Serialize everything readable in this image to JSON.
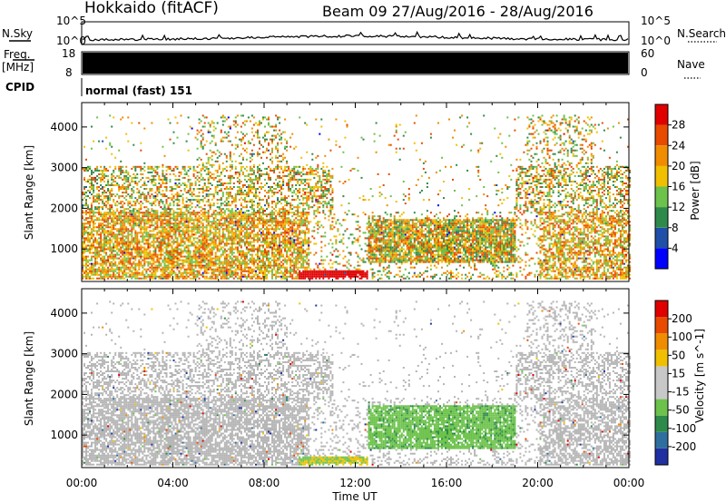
{
  "header": {
    "station": "Hokkaido (fitACF)",
    "beam_and_dates": "Beam 09 27/Aug/2016 - 28/Aug/2016"
  },
  "strip": {
    "nsky_label": "N.Sky",
    "nsky_top_tick": "10^5",
    "nsky_bottom_tick": "10^0",
    "nsearch_label": "N.Search",
    "nsearch_top_tick": "10^5",
    "nsearch_bottom_tick": "10^0",
    "freq_label_1": "Freq.",
    "freq_label_2": "[MHz]",
    "freq_ticks": [
      "18",
      "8"
    ],
    "nave_label": "Nave",
    "nave_ticks": [
      "60",
      "0"
    ],
    "cpid_label": "CPID",
    "cpid_value": "normal (fast) 151"
  },
  "colors": {
    "power_scale": [
      "#0000ff",
      "#1f4fa8",
      "#2e8a4a",
      "#6cc24a",
      "#f0c000",
      "#f08c00",
      "#e84a00",
      "#e00000"
    ],
    "velocity_scale": [
      "#2030a0",
      "#2e6fa0",
      "#2e8a4a",
      "#6cc24a",
      "#c8c8c8",
      "#c8c8c8",
      "#f0c000",
      "#f08c00",
      "#e84a00",
      "#e00000"
    ],
    "ground_scatter": "#b4b4b4"
  },
  "chart_data": [
    {
      "type": "heatmap",
      "name": "Power",
      "xlabel": "Time UT",
      "ylabel": "Slant Range [km]",
      "x_ticks": [
        "00:00",
        "04:00",
        "08:00",
        "12:00",
        "16:00",
        "20:00",
        "00:00"
      ],
      "xlim_hours": [
        0,
        24
      ],
      "y_ticks": [
        1000,
        2000,
        3000,
        4000
      ],
      "ylim": [
        200,
        4600
      ],
      "colorbar_label": "Power [dB]",
      "colorbar_ticks": [
        4,
        8,
        12,
        16,
        20,
        24,
        28
      ],
      "colorbar_range": [
        0,
        32
      ]
    },
    {
      "type": "heatmap",
      "name": "Velocity",
      "xlabel": "Time UT",
      "ylabel": "Slant Range [km]",
      "x_ticks": [
        "00:00",
        "04:00",
        "08:00",
        "12:00",
        "16:00",
        "20:00",
        "00:00"
      ],
      "xlim_hours": [
        0,
        24
      ],
      "y_ticks": [
        1000,
        2000,
        3000,
        4000
      ],
      "ylim": [
        200,
        4600
      ],
      "colorbar_label": "Velocity [m s^-1]",
      "colorbar_ticks": [
        "200",
        "100",
        "50",
        "15",
        "-15",
        "-50",
        "-100",
        "-200"
      ]
    }
  ]
}
